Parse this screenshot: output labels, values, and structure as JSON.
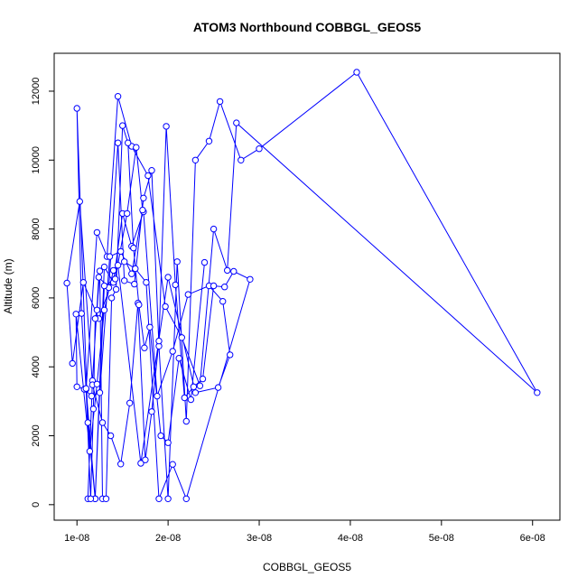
{
  "chart_data": {
    "type": "line",
    "title": "ATOM3 Northbound COBBGL_GEOS5",
    "xlabel": "COBBGL_GEOS5",
    "ylabel": "Altitude (m)",
    "xlim": [
      7.5e-09,
      6.3e-08
    ],
    "ylim": [
      -450,
      13100
    ],
    "x_ticks": [
      1e-08,
      2e-08,
      3e-08,
      4e-08,
      5e-08,
      6e-08
    ],
    "x_tick_labels": [
      "1e-08",
      "2e-08",
      "3e-08",
      "4e-08",
      "5e-08",
      "6e-08"
    ],
    "y_ticks": [
      0,
      2000,
      4000,
      6000,
      8000,
      10000,
      12000
    ],
    "y_tick_labels": [
      "0",
      "2000",
      "4000",
      "6000",
      "8000",
      "10000",
      "12000"
    ],
    "grid": false,
    "line_color": "#0000ff",
    "marker": "open-circle",
    "series": [
      {
        "x": [
          1.12e-08,
          1.17e-08,
          1.24e-08,
          1.35e-08,
          1.45e-08,
          1.52e-08,
          1.63e-08,
          1.73e-08,
          1.82e-08,
          1.9e-08,
          2e-08,
          2.1e-08,
          2.2e-08,
          2.3e-08,
          2.45e-08,
          2.57e-08,
          2.8e-08,
          3e-08,
          4.07e-08,
          6.05e-08,
          2.75e-08,
          2.65e-08,
          2.5e-08,
          2.35e-08,
          2.15e-08,
          1.97e-08,
          1.78e-08,
          1.6e-08,
          1.45e-08,
          1.33e-08,
          1.22e-08,
          1.1e-08,
          1.05e-08,
          1e-08,
          1.12e-08,
          1.2e-08,
          1.3e-08,
          1.4e-08,
          1.5e-08,
          1.6e-08,
          1.73e-08,
          1.88e-08,
          2.05e-08,
          2.22e-08,
          2.45e-08,
          2.6e-08,
          2.68e-08,
          2.55e-08,
          2.3e-08,
          2e-08,
          1.7e-08,
          1.45e-08,
          1.24e-08,
          1.07e-08,
          9.5e-09,
          8.9e-09,
          1.03e-08,
          1.17e-08,
          1.28e-08,
          1.37e-08,
          1.48e-08,
          1.58e-08,
          1.67e-08,
          1.75e-08,
          1.82e-08,
          1.9e-08,
          1.98e-08,
          2.08e-08,
          2.18e-08,
          2.28e-08,
          2.38e-08,
          2.5e-08,
          2.62e-08,
          2.72e-08,
          2.9e-08,
          2.2e-08,
          2.05e-08,
          1.9e-08,
          1.76e-08,
          1.64e-08,
          1.52e-08,
          1.4e-08,
          1.3e-08,
          1.22e-08,
          1.14e-08,
          9.9e-09,
          1e-08,
          1.08e-08,
          1.16e-08,
          1.25e-08,
          1.36e-08,
          1.48e-08,
          1.6e-08,
          1.72e-08,
          1.65e-08,
          1.55e-08,
          1.42e-08,
          1.3e-08,
          1.2e-08,
          1.1e-08,
          1.15e-08,
          1.18e-08,
          1.2e-08,
          1.22e-08,
          1.25e-08,
          1.28e-08,
          1.32e-08,
          1.38e-08,
          1.43e-08,
          1.5e-08,
          1.56e-08,
          1.62e-08,
          1.68e-08,
          1.74e-08,
          1.8e-08,
          1.92e-08,
          2e-08,
          2.12e-08,
          2.25e-08,
          2.4e-08
        ],
        "y": [
          170,
          3600,
          6600,
          6300,
          10500,
          6500,
          6400,
          8900,
          9700,
          4600,
          170,
          7050,
          2420,
          10000,
          10550,
          11700,
          10000,
          10330,
          12550,
          3250,
          11080,
          6800,
          8000,
          3450,
          4850,
          5750,
          9550,
          10400,
          11850,
          7200,
          7900,
          3350,
          5550,
          11500,
          2380,
          170,
          6900,
          6450,
          8450,
          7500,
          8500,
          3150,
          4450,
          6100,
          6350,
          5900,
          4350,
          3400,
          3250,
          6600,
          1200,
          6950,
          5400,
          6450,
          4100,
          6430,
          8800,
          3480,
          2380,
          2000,
          1180,
          2950,
          5850,
          1300,
          2700,
          4750,
          10980,
          6380,
          3100,
          3420,
          3650,
          6350,
          6320,
          6770,
          6540,
          170,
          1170,
          170,
          6450,
          6850,
          7050,
          6800,
          5650,
          3500,
          1550,
          5530,
          3420,
          3350,
          3150,
          3250,
          7200,
          7350,
          6700,
          8550,
          10370,
          8450,
          6550,
          6350,
          170,
          3370,
          170,
          2780,
          5400,
          5650,
          6780,
          170,
          170,
          6000,
          6250,
          11000,
          10500,
          7450,
          5800,
          4550,
          5150,
          2000,
          1800,
          4250,
          3050,
          7030
        ]
      }
    ]
  }
}
